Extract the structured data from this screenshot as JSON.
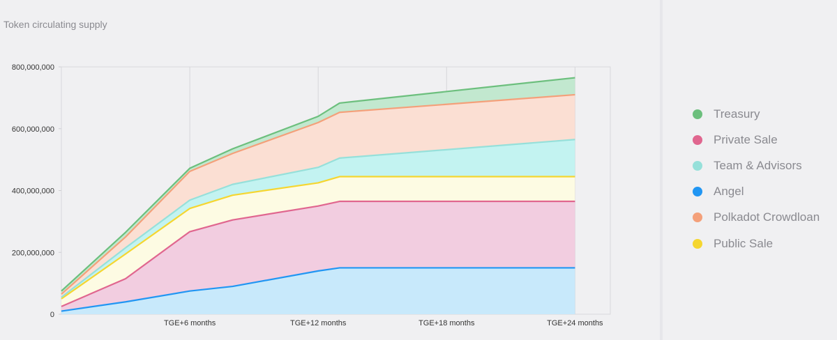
{
  "chart_data": {
    "type": "area",
    "stacked": true,
    "title": "Token circulating supply",
    "x": [
      0,
      3,
      6,
      8,
      12,
      13,
      24
    ],
    "x_ticks": [
      "TGE+6 months",
      "TGE+12 months",
      "TGE+18 months",
      "TGE+24 months"
    ],
    "y_ticks": [
      "0",
      "200,000,000",
      "400,000,000",
      "600,000,000",
      "800,000,000"
    ],
    "ylim": [
      0,
      800000000
    ],
    "grid": true,
    "legend_position": "right",
    "series": [
      {
        "name": "Angel",
        "color": "#2196f3",
        "fill": "#c8e9fb",
        "values": [
          10000000,
          40000000,
          75000000,
          90000000,
          140000000,
          150000000,
          150000000
        ]
      },
      {
        "name": "Private Sale",
        "color": "#e0668f",
        "fill": "#f2cde0",
        "values": [
          15000000,
          75000000,
          192000000,
          215000000,
          210000000,
          215000000,
          215000000
        ]
      },
      {
        "name": "Public Sale",
        "color": "#f5d630",
        "fill": "#fdfbe3",
        "values": [
          25000000,
          80000000,
          75000000,
          80000000,
          75000000,
          80000000,
          80000000
        ]
      },
      {
        "name": "Team & Advisors",
        "color": "#96e0da",
        "fill": "#c3f3f1",
        "values": [
          5000000,
          20000000,
          27000000,
          35000000,
          50000000,
          60000000,
          120000000
        ]
      },
      {
        "name": "Polkadot Crowdloan",
        "color": "#f4a07a",
        "fill": "#fbdfd3",
        "values": [
          10000000,
          35000000,
          93000000,
          100000000,
          145000000,
          148000000,
          145000000
        ]
      },
      {
        "name": "Treasury",
        "color": "#6cbf7d",
        "fill": "#c2e8cf",
        "values": [
          10000000,
          15000000,
          10000000,
          15000000,
          20000000,
          30000000,
          55000000
        ]
      }
    ],
    "legend_order": [
      "Treasury",
      "Private Sale",
      "Team & Advisors",
      "Angel",
      "Polkadot Crowdloan",
      "Public Sale"
    ]
  }
}
